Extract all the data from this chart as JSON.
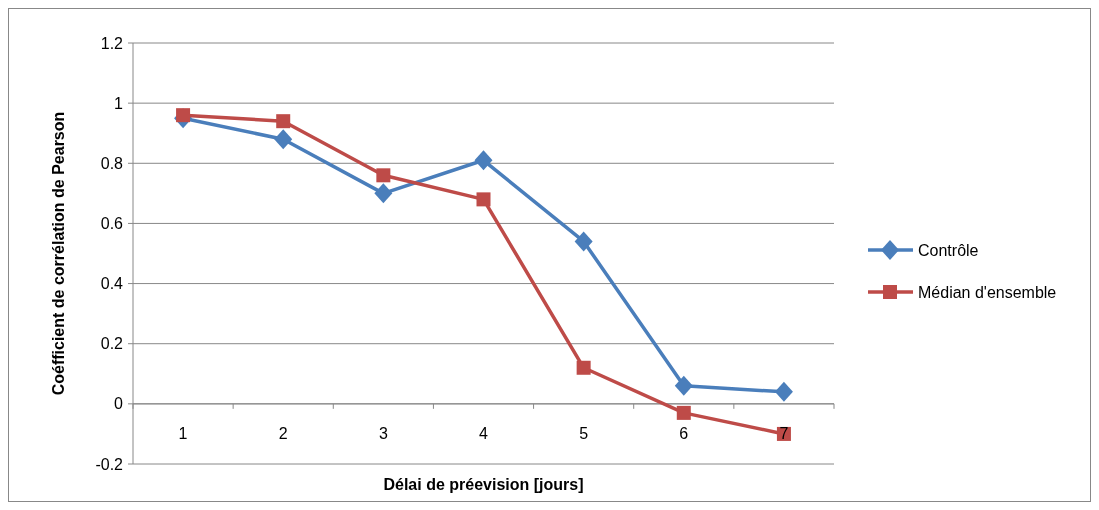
{
  "chart_data": {
    "type": "line",
    "xlabel": "Délai de préevision [jours]",
    "ylabel": "Coéfficient de corrélation de Pearson",
    "categories": [
      "1",
      "2",
      "3",
      "4",
      "5",
      "6",
      "7"
    ],
    "series": [
      {
        "name": "Contrôle",
        "color": "#4a7ebb",
        "marker": "diamond",
        "values": [
          0.95,
          0.88,
          0.7,
          0.81,
          0.54,
          0.06,
          0.04
        ]
      },
      {
        "name": "Médian d'ensemble",
        "color": "#be4b48",
        "marker": "square",
        "values": [
          0.96,
          0.94,
          0.76,
          0.68,
          0.12,
          -0.03,
          -0.1
        ]
      }
    ],
    "ylim": [
      -0.2,
      1.2
    ],
    "yticks": [
      -0.2,
      0,
      0.2,
      0.4,
      0.6,
      0.8,
      1,
      1.2
    ],
    "grid": "y",
    "legend": "right",
    "line_style": "solid"
  }
}
